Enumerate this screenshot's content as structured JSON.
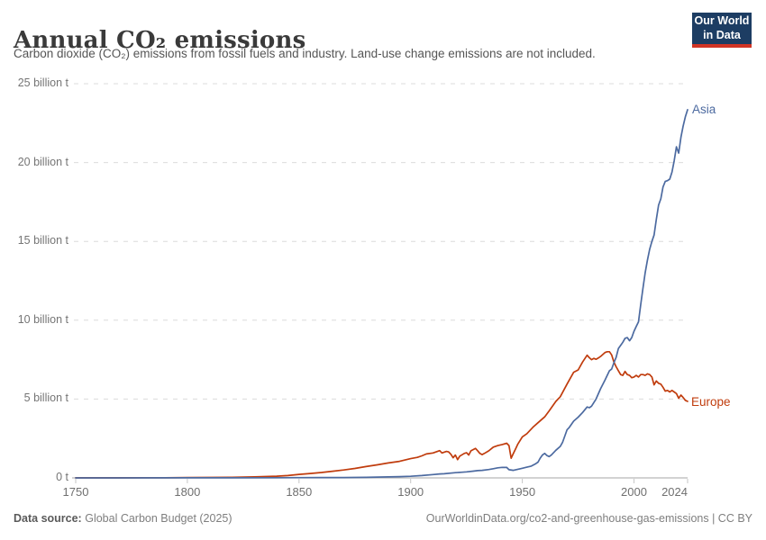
{
  "header": {
    "title": "Annual CO₂ emissions",
    "subtitle": "Carbon dioxide (CO₂) emissions from fossil fuels and industry. Land-use change emissions are not included.",
    "logo": {
      "line1": "Our World",
      "line2": "in Data",
      "bg_color": "#1d3d63",
      "accent_color": "#d13425"
    }
  },
  "footer": {
    "source_label": "Data source:",
    "source_value": "Global Carbon Budget (2025)",
    "attribution": "OurWorldinData.org/co2-and-greenhouse-gas-emissions | CC BY"
  },
  "chart_data": {
    "type": "line",
    "title": "Annual CO₂ emissions",
    "xlabel": "",
    "ylabel": "",
    "xlim": [
      1750,
      2024
    ],
    "ylim": [
      0,
      25
    ],
    "grid": "horizontal-dashed",
    "gridline_color": "#dcdcdc",
    "axis_color": "#b8b8b8",
    "legend_position": "line-end-labels",
    "x_ticks": [
      {
        "value": 1750,
        "label": "1750"
      },
      {
        "value": 1800,
        "label": "1800"
      },
      {
        "value": 1850,
        "label": "1850"
      },
      {
        "value": 1900,
        "label": "1900"
      },
      {
        "value": 1950,
        "label": "1950"
      },
      {
        "value": 2000,
        "label": "2000"
      },
      {
        "value": 2024,
        "label": "2024"
      }
    ],
    "y_ticks": [
      {
        "value": 0,
        "label": "0 t"
      },
      {
        "value": 5,
        "label": "5 billion t"
      },
      {
        "value": 10,
        "label": "10 billion t"
      },
      {
        "value": 15,
        "label": "15 billion t"
      },
      {
        "value": 20,
        "label": "20 billion t"
      },
      {
        "value": 25,
        "label": "25 billion t"
      }
    ],
    "unit": "billion tonnes CO₂ per year",
    "series": [
      {
        "name": "Asia",
        "color": "#4c6aa0",
        "points": [
          [
            1750,
            0.002
          ],
          [
            1800,
            0.004
          ],
          [
            1820,
            0.006
          ],
          [
            1840,
            0.01
          ],
          [
            1850,
            0.015
          ],
          [
            1860,
            0.02
          ],
          [
            1870,
            0.025
          ],
          [
            1880,
            0.035
          ],
          [
            1885,
            0.05
          ],
          [
            1890,
            0.06
          ],
          [
            1895,
            0.08
          ],
          [
            1900,
            0.1
          ],
          [
            1905,
            0.15
          ],
          [
            1910,
            0.21
          ],
          [
            1913,
            0.25
          ],
          [
            1915,
            0.26
          ],
          [
            1920,
            0.33
          ],
          [
            1923,
            0.36
          ],
          [
            1925,
            0.38
          ],
          [
            1928,
            0.43
          ],
          [
            1930,
            0.46
          ],
          [
            1932,
            0.48
          ],
          [
            1935,
            0.53
          ],
          [
            1937,
            0.58
          ],
          [
            1939,
            0.64
          ],
          [
            1941,
            0.67
          ],
          [
            1943,
            0.66
          ],
          [
            1944,
            0.52
          ],
          [
            1946,
            0.48
          ],
          [
            1948,
            0.55
          ],
          [
            1950,
            0.61
          ],
          [
            1952,
            0.68
          ],
          [
            1954,
            0.75
          ],
          [
            1956,
            0.9
          ],
          [
            1957,
            1.0
          ],
          [
            1958,
            1.25
          ],
          [
            1959,
            1.45
          ],
          [
            1960,
            1.55
          ],
          [
            1961,
            1.42
          ],
          [
            1962,
            1.35
          ],
          [
            1963,
            1.45
          ],
          [
            1965,
            1.75
          ],
          [
            1967,
            2.0
          ],
          [
            1968,
            2.25
          ],
          [
            1970,
            3.05
          ],
          [
            1971,
            3.2
          ],
          [
            1973,
            3.6
          ],
          [
            1975,
            3.85
          ],
          [
            1977,
            4.15
          ],
          [
            1979,
            4.5
          ],
          [
            1980,
            4.45
          ],
          [
            1981,
            4.55
          ],
          [
            1983,
            5.0
          ],
          [
            1985,
            5.65
          ],
          [
            1987,
            6.2
          ],
          [
            1989,
            6.8
          ],
          [
            1990,
            6.9
          ],
          [
            1991,
            7.3
          ],
          [
            1992,
            7.65
          ],
          [
            1993,
            8.2
          ],
          [
            1994,
            8.4
          ],
          [
            1995,
            8.6
          ],
          [
            1996,
            8.85
          ],
          [
            1997,
            8.9
          ],
          [
            1998,
            8.7
          ],
          [
            1999,
            8.9
          ],
          [
            2000,
            9.3
          ],
          [
            2001,
            9.6
          ],
          [
            2002,
            9.9
          ],
          [
            2003,
            11.0
          ],
          [
            2004,
            12.0
          ],
          [
            2005,
            13.0
          ],
          [
            2006,
            13.8
          ],
          [
            2007,
            14.5
          ],
          [
            2008,
            15.0
          ],
          [
            2009,
            15.4
          ],
          [
            2010,
            16.4
          ],
          [
            2011,
            17.3
          ],
          [
            2012,
            17.7
          ],
          [
            2013,
            18.45
          ],
          [
            2014,
            18.8
          ],
          [
            2015,
            18.85
          ],
          [
            2016,
            18.95
          ],
          [
            2017,
            19.4
          ],
          [
            2018,
            20.1
          ],
          [
            2019,
            21.0
          ],
          [
            2020,
            20.6
          ],
          [
            2021,
            21.6
          ],
          [
            2022,
            22.3
          ],
          [
            2023,
            22.9
          ],
          [
            2024,
            23.35
          ]
        ]
      },
      {
        "name": "Europe",
        "color": "#c03c0d",
        "points": [
          [
            1750,
            0.003
          ],
          [
            1760,
            0.004
          ],
          [
            1770,
            0.006
          ],
          [
            1780,
            0.009
          ],
          [
            1790,
            0.013
          ],
          [
            1800,
            0.02
          ],
          [
            1810,
            0.027
          ],
          [
            1820,
            0.04
          ],
          [
            1830,
            0.065
          ],
          [
            1840,
            0.11
          ],
          [
            1845,
            0.15
          ],
          [
            1850,
            0.22
          ],
          [
            1855,
            0.28
          ],
          [
            1860,
            0.34
          ],
          [
            1865,
            0.42
          ],
          [
            1870,
            0.5
          ],
          [
            1875,
            0.6
          ],
          [
            1880,
            0.72
          ],
          [
            1885,
            0.83
          ],
          [
            1890,
            0.95
          ],
          [
            1895,
            1.05
          ],
          [
            1900,
            1.22
          ],
          [
            1903,
            1.3
          ],
          [
            1905,
            1.4
          ],
          [
            1907,
            1.52
          ],
          [
            1910,
            1.58
          ],
          [
            1913,
            1.73
          ],
          [
            1914,
            1.58
          ],
          [
            1916,
            1.68
          ],
          [
            1917,
            1.65
          ],
          [
            1918,
            1.5
          ],
          [
            1919,
            1.28
          ],
          [
            1920,
            1.45
          ],
          [
            1921,
            1.16
          ],
          [
            1922,
            1.38
          ],
          [
            1924,
            1.55
          ],
          [
            1925,
            1.6
          ],
          [
            1926,
            1.45
          ],
          [
            1927,
            1.72
          ],
          [
            1929,
            1.87
          ],
          [
            1930,
            1.72
          ],
          [
            1931,
            1.55
          ],
          [
            1932,
            1.48
          ],
          [
            1933,
            1.55
          ],
          [
            1935,
            1.72
          ],
          [
            1937,
            1.95
          ],
          [
            1939,
            2.05
          ],
          [
            1941,
            2.12
          ],
          [
            1943,
            2.2
          ],
          [
            1944,
            2.05
          ],
          [
            1945,
            1.25
          ],
          [
            1946,
            1.55
          ],
          [
            1947,
            1.85
          ],
          [
            1948,
            2.15
          ],
          [
            1950,
            2.6
          ],
          [
            1952,
            2.8
          ],
          [
            1955,
            3.25
          ],
          [
            1957,
            3.5
          ],
          [
            1960,
            3.87
          ],
          [
            1962,
            4.25
          ],
          [
            1965,
            4.85
          ],
          [
            1967,
            5.15
          ],
          [
            1970,
            5.95
          ],
          [
            1973,
            6.7
          ],
          [
            1975,
            6.85
          ],
          [
            1977,
            7.35
          ],
          [
            1979,
            7.78
          ],
          [
            1980,
            7.62
          ],
          [
            1981,
            7.5
          ],
          [
            1982,
            7.58
          ],
          [
            1983,
            7.52
          ],
          [
            1984,
            7.6
          ],
          [
            1985,
            7.7
          ],
          [
            1987,
            7.95
          ],
          [
            1988,
            8.0
          ],
          [
            1989,
            8.0
          ],
          [
            1990,
            7.8
          ],
          [
            1991,
            7.35
          ],
          [
            1992,
            7.05
          ],
          [
            1993,
            6.8
          ],
          [
            1994,
            6.55
          ],
          [
            1995,
            6.5
          ],
          [
            1996,
            6.75
          ],
          [
            1997,
            6.55
          ],
          [
            1998,
            6.5
          ],
          [
            1999,
            6.35
          ],
          [
            2000,
            6.4
          ],
          [
            2001,
            6.5
          ],
          [
            2002,
            6.4
          ],
          [
            2003,
            6.55
          ],
          [
            2004,
            6.55
          ],
          [
            2005,
            6.5
          ],
          [
            2006,
            6.6
          ],
          [
            2007,
            6.55
          ],
          [
            2008,
            6.4
          ],
          [
            2009,
            5.9
          ],
          [
            2010,
            6.15
          ],
          [
            2011,
            6.0
          ],
          [
            2012,
            5.95
          ],
          [
            2013,
            5.75
          ],
          [
            2014,
            5.5
          ],
          [
            2015,
            5.55
          ],
          [
            2016,
            5.45
          ],
          [
            2017,
            5.55
          ],
          [
            2018,
            5.45
          ],
          [
            2019,
            5.35
          ],
          [
            2020,
            5.05
          ],
          [
            2021,
            5.25
          ],
          [
            2022,
            5.1
          ],
          [
            2023,
            4.92
          ],
          [
            2024,
            4.85
          ]
        ]
      }
    ]
  }
}
